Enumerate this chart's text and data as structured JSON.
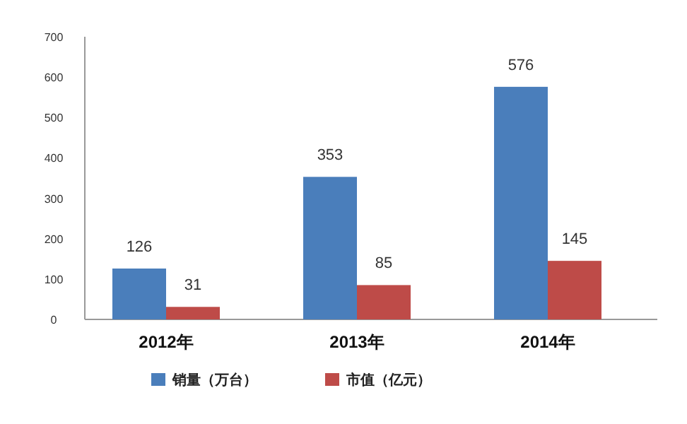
{
  "chart_data": {
    "type": "bar",
    "categories": [
      "2012年",
      "2013年",
      "2014年"
    ],
    "series": [
      {
        "name": "销量（万台）",
        "color": "#4a7ebb",
        "values": [
          126,
          353,
          576
        ]
      },
      {
        "name": "市值（亿元）",
        "color": "#be4b48",
        "values": [
          31,
          85,
          145
        ]
      }
    ],
    "ylim": [
      0,
      700
    ],
    "yticks": [
      0,
      100,
      200,
      300,
      400,
      500,
      600,
      700
    ],
    "grid": false,
    "legend": "bottom",
    "data_labels": true
  }
}
